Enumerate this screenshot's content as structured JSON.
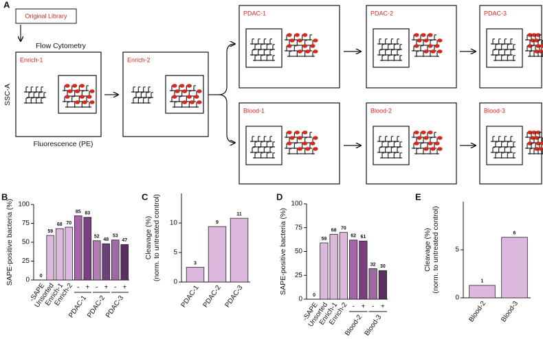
{
  "diagram": {
    "label": "A",
    "source": "Original Library",
    "method": "Flow Cytometry",
    "y_axis": "SSC-A",
    "x_axis": "Fluorescence (PE)",
    "gates": [
      "Enrich-1",
      "Enrich-2",
      "PDAC-1",
      "PDAC-2",
      "PDAC-3",
      "Blood-1",
      "Blood-2",
      "Blood-3"
    ]
  },
  "chart_data": [
    {
      "type": "bar",
      "label": "B",
      "ylabel": [
        "SAPE-positive bacteria (%)"
      ],
      "categories": [
        "-SAPE",
        "Unsorted",
        "Enrich-1",
        "Enrich-2",
        "-",
        "+",
        "-",
        "+",
        "-",
        "+"
      ],
      "groups": [
        "PDAC-1",
        "PDAC-2",
        "PDAC-3"
      ],
      "values": [
        0,
        59,
        68,
        70,
        85,
        83,
        52,
        48,
        53,
        47
      ],
      "colors": [
        "#333333",
        "#dcb8dc",
        "#dcb8dc",
        "#dcb8dc",
        "#a565a8",
        "#7a3f80",
        "#b27cb4",
        "#6f3f78",
        "#9e6aa3",
        "#5b2f62"
      ],
      "ylim": [
        0,
        100
      ],
      "yticks": [
        0,
        25,
        50,
        75,
        100
      ]
    },
    {
      "type": "bar",
      "label": "C",
      "ylabel": [
        "Cleavage (%)",
        "(norm. to untreated control)"
      ],
      "categories": [
        "PDAC-1",
        "PDAC-2",
        "PDAC-3"
      ],
      "values": [
        2.5,
        9.4,
        10.8
      ],
      "value_labels": [
        "3",
        "9",
        "11"
      ],
      "colors": [
        "#dcb8dc",
        "#dcb8dc",
        "#dcb8dc"
      ],
      "ylim": [
        0,
        15
      ],
      "yticks": [
        0,
        5,
        10
      ]
    },
    {
      "type": "bar",
      "label": "D",
      "ylabel": [
        "SAPE-positive bacteria (%)"
      ],
      "categories": [
        "-SAPE",
        "Unsorted",
        "Enrich-1",
        "Enrich-2",
        "-",
        "+",
        "-",
        "+"
      ],
      "groups": [
        "Blood-2",
        "Blood-3"
      ],
      "values": [
        0,
        59,
        68,
        70,
        62,
        61,
        32,
        30
      ],
      "colors": [
        "#333333",
        "#dcb8dc",
        "#dcb8dc",
        "#dcb8dc",
        "#a565a8",
        "#7a3f80",
        "#9e6aa3",
        "#5b2f62"
      ],
      "ylim": [
        0,
        100
      ],
      "yticks": [
        0,
        25,
        50,
        75,
        100
      ]
    },
    {
      "type": "bar",
      "label": "E",
      "ylabel": [
        "Cleavage (%)",
        "(norm. to untreated control)"
      ],
      "categories": [
        "Blood-2",
        "Blood-3"
      ],
      "values": [
        1.3,
        6.3
      ],
      "value_labels": [
        "1",
        "6"
      ],
      "colors": [
        "#dcb8dc",
        "#dcb8dc"
      ],
      "ylim": [
        0,
        10
      ],
      "yticks": [
        0,
        5
      ]
    }
  ]
}
